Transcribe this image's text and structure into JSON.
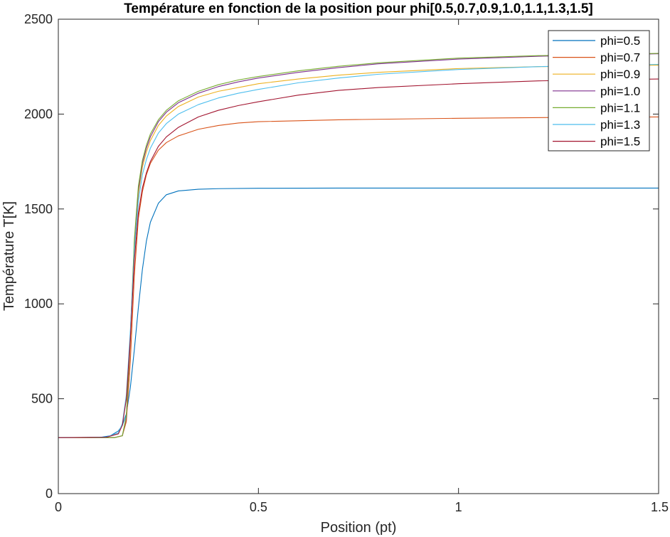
{
  "chart_data": {
    "type": "line",
    "title": "Température en fonction de la position pour phi[0.5,0.7,0.9,1.0,1.1,1.3,1.5]",
    "xlabel": "Position (pt)",
    "ylabel": "Température T[K]",
    "xlim": [
      0,
      1.5
    ],
    "ylim": [
      0,
      2500
    ],
    "xticks": [
      0,
      0.5,
      1,
      1.5
    ],
    "xtick_labels": [
      "0",
      "0.5",
      "1",
      "1.5"
    ],
    "yticks": [
      0,
      500,
      1000,
      1500,
      2000,
      2500
    ],
    "ytick_labels": [
      "0",
      "500",
      "1000",
      "1500",
      "2000",
      "2500"
    ],
    "grid": false,
    "legend_position": "top-right",
    "series": [
      {
        "name": "phi=0.5",
        "color": "#0072BD",
        "x": [
          0,
          0.1,
          0.13,
          0.15,
          0.16,
          0.17,
          0.18,
          0.19,
          0.2,
          0.21,
          0.22,
          0.23,
          0.25,
          0.27,
          0.3,
          0.35,
          0.4,
          0.5,
          0.7,
          1.0,
          1.3,
          1.5
        ],
        "y": [
          295,
          295,
          305,
          330,
          360,
          420,
          560,
          760,
          980,
          1180,
          1330,
          1430,
          1530,
          1575,
          1595,
          1604,
          1607,
          1609,
          1610,
          1610,
          1610,
          1610
        ]
      },
      {
        "name": "phi=0.7",
        "color": "#D95319",
        "x": [
          0,
          0.14,
          0.16,
          0.17,
          0.18,
          0.19,
          0.2,
          0.21,
          0.22,
          0.23,
          0.25,
          0.27,
          0.3,
          0.35,
          0.4,
          0.45,
          0.5,
          0.7,
          1.0,
          1.3,
          1.5
        ],
        "y": [
          295,
          295,
          305,
          380,
          700,
          1150,
          1450,
          1590,
          1680,
          1740,
          1810,
          1850,
          1885,
          1920,
          1940,
          1953,
          1960,
          1970,
          1978,
          1983,
          1985
        ]
      },
      {
        "name": "phi=0.9",
        "color": "#EDB120",
        "x": [
          0,
          0.14,
          0.16,
          0.17,
          0.18,
          0.19,
          0.2,
          0.21,
          0.22,
          0.23,
          0.25,
          0.27,
          0.3,
          0.35,
          0.4,
          0.45,
          0.5,
          0.6,
          0.7,
          0.8,
          1.0,
          1.2,
          1.5
        ],
        "y": [
          295,
          295,
          305,
          400,
          800,
          1300,
          1580,
          1720,
          1800,
          1860,
          1940,
          1990,
          2040,
          2090,
          2120,
          2140,
          2160,
          2185,
          2205,
          2220,
          2240,
          2250,
          2258
        ]
      },
      {
        "name": "phi=1.0",
        "color": "#7E2F8E",
        "x": [
          0,
          0.14,
          0.16,
          0.17,
          0.18,
          0.19,
          0.2,
          0.21,
          0.22,
          0.23,
          0.25,
          0.27,
          0.3,
          0.35,
          0.4,
          0.45,
          0.5,
          0.6,
          0.7,
          0.8,
          1.0,
          1.2,
          1.5
        ],
        "y": [
          295,
          295,
          305,
          400,
          820,
          1320,
          1600,
          1740,
          1820,
          1880,
          1960,
          2010,
          2060,
          2110,
          2145,
          2170,
          2190,
          2220,
          2245,
          2265,
          2290,
          2305,
          2318
        ]
      },
      {
        "name": "phi=1.1",
        "color": "#77AC30",
        "x": [
          0,
          0.14,
          0.16,
          0.17,
          0.18,
          0.19,
          0.2,
          0.21,
          0.22,
          0.23,
          0.25,
          0.27,
          0.3,
          0.35,
          0.4,
          0.45,
          0.5,
          0.6,
          0.7,
          0.8,
          1.0,
          1.2,
          1.5
        ],
        "y": [
          295,
          295,
          305,
          410,
          840,
          1340,
          1620,
          1755,
          1835,
          1895,
          1970,
          2020,
          2070,
          2120,
          2155,
          2180,
          2198,
          2228,
          2252,
          2270,
          2295,
          2308,
          2320
        ]
      },
      {
        "name": "phi=1.3",
        "color": "#4DBEEE",
        "x": [
          0,
          0.12,
          0.15,
          0.16,
          0.17,
          0.18,
          0.19,
          0.2,
          0.21,
          0.22,
          0.23,
          0.25,
          0.27,
          0.3,
          0.35,
          0.4,
          0.45,
          0.5,
          0.6,
          0.7,
          0.8,
          1.0,
          1.2,
          1.5
        ],
        "y": [
          295,
          298,
          320,
          370,
          520,
          860,
          1280,
          1540,
          1680,
          1760,
          1820,
          1900,
          1950,
          2000,
          2050,
          2085,
          2110,
          2130,
          2165,
          2190,
          2210,
          2235,
          2250,
          2262
        ]
      },
      {
        "name": "phi=1.5",
        "color": "#A2142F",
        "x": [
          0,
          0.12,
          0.15,
          0.16,
          0.17,
          0.18,
          0.19,
          0.2,
          0.21,
          0.22,
          0.23,
          0.25,
          0.27,
          0.3,
          0.35,
          0.4,
          0.45,
          0.5,
          0.6,
          0.7,
          0.8,
          1.0,
          1.2,
          1.5
        ],
        "y": [
          295,
          297,
          315,
          360,
          500,
          820,
          1230,
          1480,
          1610,
          1690,
          1750,
          1830,
          1880,
          1930,
          1985,
          2020,
          2045,
          2065,
          2100,
          2125,
          2140,
          2160,
          2175,
          2185
        ]
      }
    ]
  }
}
